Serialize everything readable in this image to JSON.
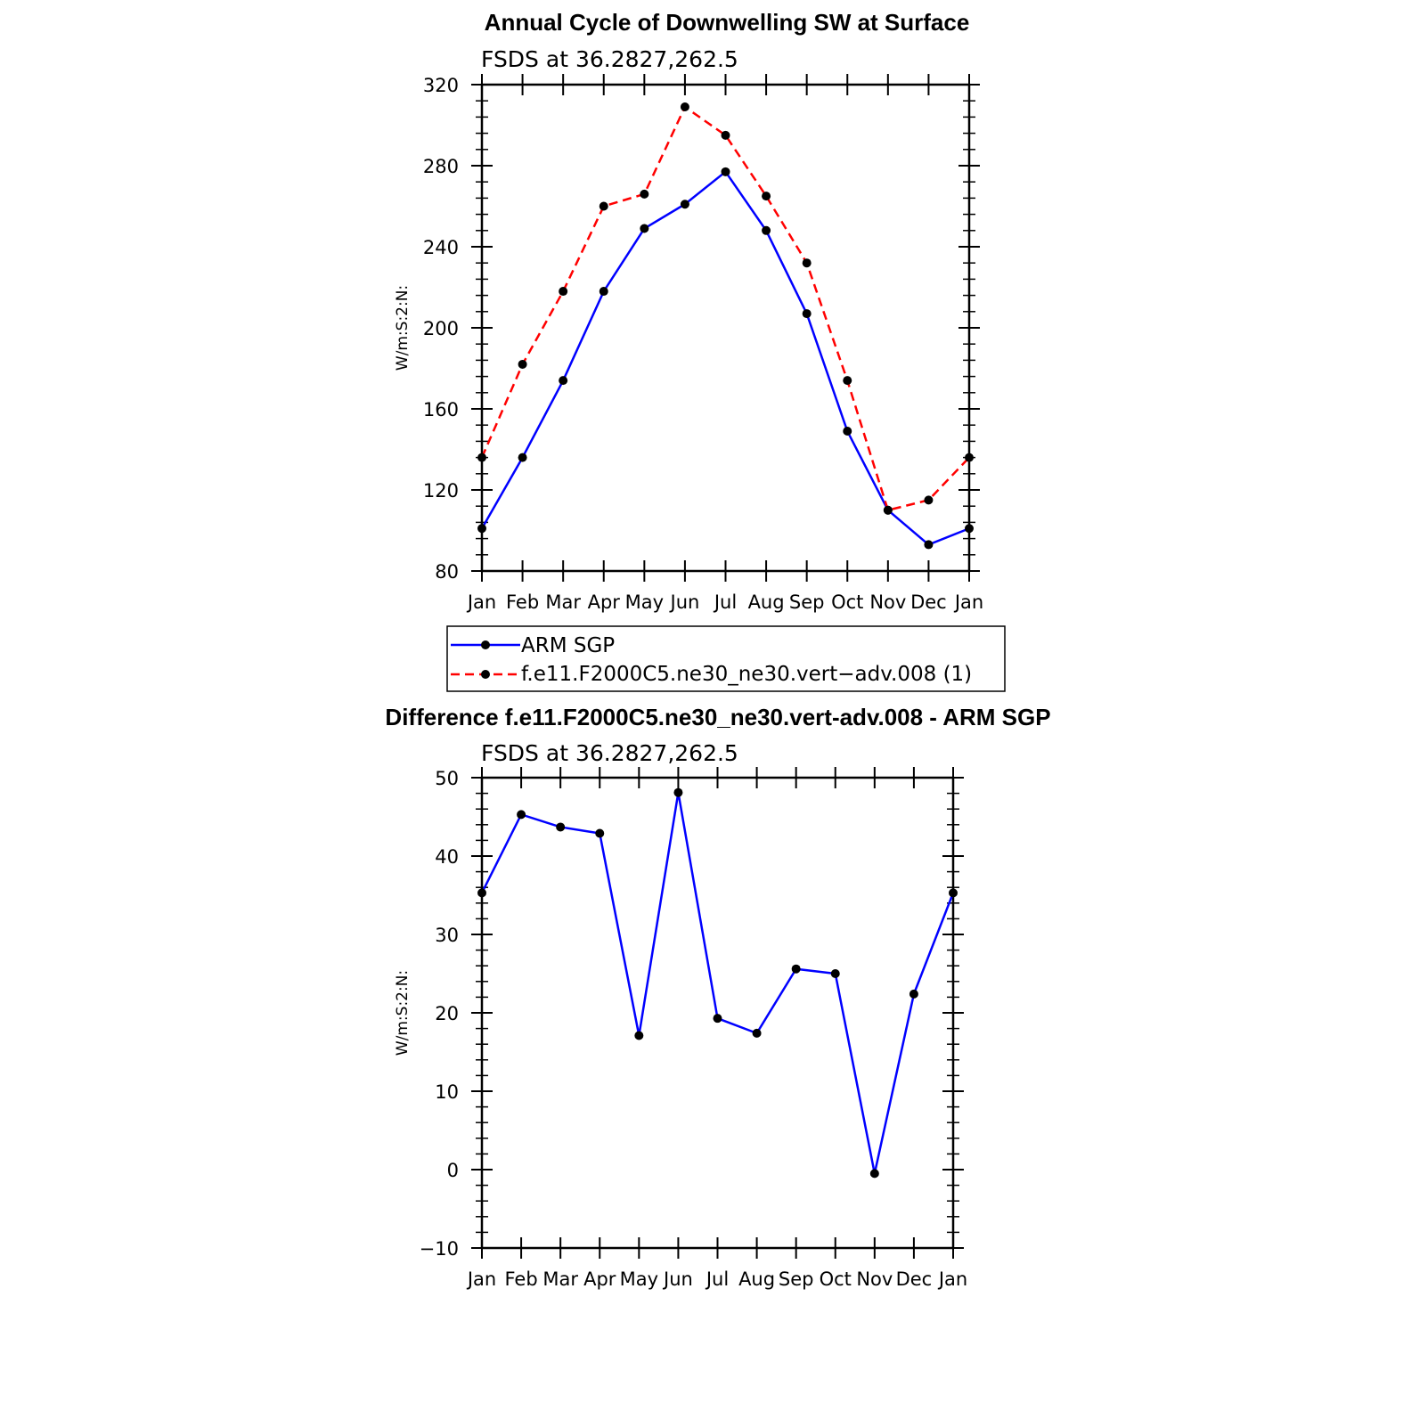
{
  "chart_data": [
    {
      "type": "line",
      "title": "Annual Cycle of Downwelling SW at Surface",
      "subtitle": "FSDS at 36.2827,262.5",
      "xlabel": "",
      "ylabel": "W/m:S:2:N:",
      "categories": [
        "Jan",
        "Feb",
        "Mar",
        "Apr",
        "May",
        "Jun",
        "Jul",
        "Aug",
        "Sep",
        "Oct",
        "Nov",
        "Dec",
        "Jan"
      ],
      "ylim": [
        80,
        320
      ],
      "yticks": [
        "80",
        "120",
        "160",
        "200",
        "240",
        "280",
        "320"
      ],
      "series": [
        {
          "name": "ARM SGP",
          "color": "#0000ff",
          "dash": "solid",
          "values": [
            101,
            136,
            174,
            218,
            249,
            261,
            277,
            248,
            207,
            149,
            110,
            93,
            101
          ]
        },
        {
          "name": "f.e11.F2000C5.ne30_ne30.vert−adv.008 (1)",
          "color": "#ff0000",
          "dash": "dashed",
          "values": [
            136,
            182,
            218,
            260,
            266,
            309,
            295,
            265,
            232,
            174,
            110,
            115,
            136
          ]
        }
      ],
      "legend": "below"
    },
    {
      "type": "line",
      "title": "Difference f.e11.F2000C5.ne30_ne30.vert-adv.008 - ARM SGP",
      "subtitle": "FSDS at 36.2827,262.5",
      "xlabel": "",
      "ylabel": "W/m:S:2:N:",
      "categories": [
        "Jan",
        "Feb",
        "Mar",
        "Apr",
        "May",
        "Jun",
        "Jul",
        "Aug",
        "Sep",
        "Oct",
        "Nov",
        "Dec",
        "Jan"
      ],
      "ylim": [
        -10,
        50
      ],
      "yticks": [
        "−10",
        "0",
        "10",
        "20",
        "30",
        "40",
        "50"
      ],
      "series": [
        {
          "name": "Difference",
          "color": "#0000ff",
          "dash": "solid",
          "values": [
            35.3,
            45.3,
            43.7,
            42.9,
            17.1,
            48.1,
            19.3,
            17.4,
            25.6,
            25.0,
            -0.5,
            22.4,
            35.3
          ]
        }
      ]
    }
  ]
}
